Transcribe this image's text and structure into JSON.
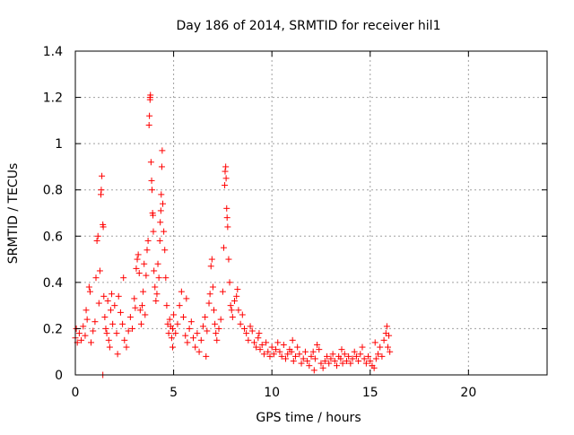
{
  "chart_data": {
    "type": "scatter",
    "title": "Day 186 of 2014, SRMTID for receiver hil1",
    "xlabel": "GPS time / hours",
    "ylabel": "SRMTID / TECUs",
    "xlim": [
      0,
      24
    ],
    "ylim": [
      0,
      1.4
    ],
    "xticks": [
      0,
      5,
      10,
      15,
      20
    ],
    "xtick_labels": [
      "0",
      "5",
      "10",
      "15",
      "20"
    ],
    "yticks": [
      0,
      0.2,
      0.4,
      0.6,
      0.8,
      1.0,
      1.2,
      1.4
    ],
    "ytick_labels": [
      "0",
      "0.2",
      "0.4",
      "0.6",
      "0.8",
      "1",
      "1.2",
      "1.4"
    ],
    "grid": true,
    "marker": "+",
    "marker_color": "#ff0000",
    "series": [
      {
        "name": "SRMTID",
        "points": [
          [
            0.0,
            0.16
          ],
          [
            0.1,
            0.14
          ],
          [
            0.2,
            0.18
          ],
          [
            0.3,
            0.15
          ],
          [
            0.4,
            0.21
          ],
          [
            0.5,
            0.17
          ],
          [
            0.6,
            0.24
          ],
          [
            0.7,
            0.38
          ],
          [
            0.75,
            0.36
          ],
          [
            0.8,
            0.14
          ],
          [
            0.9,
            0.19
          ],
          [
            1.0,
            0.23
          ],
          [
            1.05,
            0.42
          ],
          [
            1.1,
            0.58
          ],
          [
            1.15,
            0.6
          ],
          [
            1.2,
            0.31
          ],
          [
            1.25,
            0.45
          ],
          [
            1.3,
            0.78
          ],
          [
            1.32,
            0.8
          ],
          [
            1.35,
            0.86
          ],
          [
            1.4,
            0.65
          ],
          [
            1.42,
            0.64
          ],
          [
            1.45,
            0.34
          ],
          [
            1.5,
            0.25
          ],
          [
            1.55,
            0.2
          ],
          [
            1.6,
            0.18
          ],
          [
            1.65,
            0.32
          ],
          [
            1.7,
            0.15
          ],
          [
            1.75,
            0.12
          ],
          [
            1.8,
            0.28
          ],
          [
            1.85,
            0.35
          ],
          [
            1.9,
            0.22
          ],
          [
            2.0,
            0.3
          ],
          [
            2.1,
            0.18
          ],
          [
            2.2,
            0.34
          ],
          [
            2.3,
            0.27
          ],
          [
            2.4,
            0.22
          ],
          [
            2.5,
            0.15
          ],
          [
            2.6,
            0.12
          ],
          [
            2.7,
            0.19
          ],
          [
            2.8,
            0.25
          ],
          [
            2.9,
            0.2
          ],
          [
            3.0,
            0.33
          ],
          [
            3.05,
            0.29
          ],
          [
            3.1,
            0.46
          ],
          [
            3.15,
            0.5
          ],
          [
            3.2,
            0.52
          ],
          [
            3.25,
            0.44
          ],
          [
            3.3,
            0.28
          ],
          [
            3.35,
            0.22
          ],
          [
            3.4,
            0.3
          ],
          [
            3.45,
            0.36
          ],
          [
            3.5,
            0.48
          ],
          [
            3.55,
            0.26
          ],
          [
            3.6,
            0.43
          ],
          [
            3.65,
            0.54
          ],
          [
            3.7,
            0.58
          ],
          [
            3.75,
            1.08
          ],
          [
            3.77,
            1.12
          ],
          [
            3.8,
            1.19
          ],
          [
            3.82,
            1.21
          ],
          [
            3.85,
            0.92
          ],
          [
            3.88,
            0.84
          ],
          [
            3.9,
            0.8
          ],
          [
            3.93,
            0.7
          ],
          [
            3.95,
            0.69
          ],
          [
            3.97,
            0.62
          ],
          [
            4.0,
            0.45
          ],
          [
            4.05,
            0.38
          ],
          [
            4.1,
            0.32
          ],
          [
            4.15,
            0.35
          ],
          [
            4.2,
            0.48
          ],
          [
            4.25,
            0.42
          ],
          [
            4.3,
            0.58
          ],
          [
            4.32,
            0.66
          ],
          [
            4.35,
            0.71
          ],
          [
            4.37,
            0.78
          ],
          [
            4.4,
            0.9
          ],
          [
            4.42,
            0.97
          ],
          [
            4.45,
            0.74
          ],
          [
            4.5,
            0.62
          ],
          [
            4.55,
            0.54
          ],
          [
            4.6,
            0.42
          ],
          [
            4.65,
            0.3
          ],
          [
            4.7,
            0.22
          ],
          [
            4.75,
            0.18
          ],
          [
            4.8,
            0.24
          ],
          [
            4.85,
            0.21
          ],
          [
            4.9,
            0.16
          ],
          [
            4.95,
            0.2
          ],
          [
            5.0,
            0.26
          ],
          [
            5.1,
            0.18
          ],
          [
            5.2,
            0.22
          ],
          [
            5.3,
            0.3
          ],
          [
            5.4,
            0.36
          ],
          [
            5.5,
            0.25
          ],
          [
            5.6,
            0.17
          ],
          [
            5.7,
            0.14
          ],
          [
            5.8,
            0.2
          ],
          [
            5.9,
            0.23
          ],
          [
            6.0,
            0.16
          ],
          [
            6.1,
            0.12
          ],
          [
            6.2,
            0.18
          ],
          [
            6.3,
            0.1
          ],
          [
            6.4,
            0.15
          ],
          [
            6.5,
            0.21
          ],
          [
            6.6,
            0.25
          ],
          [
            6.7,
            0.19
          ],
          [
            6.8,
            0.31
          ],
          [
            6.85,
            0.35
          ],
          [
            6.9,
            0.47
          ],
          [
            6.95,
            0.5
          ],
          [
            7.0,
            0.38
          ],
          [
            7.05,
            0.28
          ],
          [
            7.1,
            0.22
          ],
          [
            7.15,
            0.18
          ],
          [
            7.2,
            0.15
          ],
          [
            7.3,
            0.2
          ],
          [
            7.4,
            0.24
          ],
          [
            7.5,
            0.36
          ],
          [
            7.55,
            0.55
          ],
          [
            7.6,
            0.82
          ],
          [
            7.62,
            0.88
          ],
          [
            7.65,
            0.9
          ],
          [
            7.67,
            0.85
          ],
          [
            7.7,
            0.72
          ],
          [
            7.72,
            0.68
          ],
          [
            7.75,
            0.64
          ],
          [
            7.8,
            0.5
          ],
          [
            7.85,
            0.4
          ],
          [
            7.9,
            0.3
          ],
          [
            7.95,
            0.28
          ],
          [
            8.0,
            0.25
          ],
          [
            8.1,
            0.32
          ],
          [
            8.2,
            0.34
          ],
          [
            8.3,
            0.28
          ],
          [
            8.4,
            0.22
          ],
          [
            8.5,
            0.26
          ],
          [
            8.6,
            0.2
          ],
          [
            8.7,
            0.18
          ],
          [
            8.8,
            0.15
          ],
          [
            8.9,
            0.21
          ],
          [
            9.0,
            0.19
          ],
          [
            9.1,
            0.14
          ],
          [
            9.2,
            0.12
          ],
          [
            9.3,
            0.16
          ],
          [
            9.4,
            0.11
          ],
          [
            9.5,
            0.13
          ],
          [
            9.6,
            0.09
          ],
          [
            9.7,
            0.14
          ],
          [
            9.8,
            0.1
          ],
          [
            9.9,
            0.08
          ],
          [
            10.0,
            0.12
          ],
          [
            10.1,
            0.09
          ],
          [
            10.2,
            0.11
          ],
          [
            10.3,
            0.14
          ],
          [
            10.4,
            0.1
          ],
          [
            10.5,
            0.08
          ],
          [
            10.6,
            0.13
          ],
          [
            10.7,
            0.07
          ],
          [
            10.8,
            0.09
          ],
          [
            10.9,
            0.11
          ],
          [
            11.0,
            0.1
          ],
          [
            11.1,
            0.06
          ],
          [
            11.2,
            0.08
          ],
          [
            11.3,
            0.12
          ],
          [
            11.4,
            0.09
          ],
          [
            11.5,
            0.05
          ],
          [
            11.6,
            0.07
          ],
          [
            11.7,
            0.1
          ],
          [
            11.8,
            0.06
          ],
          [
            11.9,
            0.04
          ],
          [
            12.0,
            0.08
          ],
          [
            12.1,
            0.1
          ],
          [
            12.2,
            0.07
          ],
          [
            12.3,
            0.13
          ],
          [
            12.4,
            0.11
          ],
          [
            12.5,
            0.05
          ],
          [
            12.6,
            0.03
          ],
          [
            12.7,
            0.06
          ],
          [
            12.8,
            0.08
          ],
          [
            12.9,
            0.05
          ],
          [
            13.0,
            0.07
          ],
          [
            13.1,
            0.09
          ],
          [
            13.2,
            0.06
          ],
          [
            13.3,
            0.04
          ],
          [
            13.4,
            0.08
          ],
          [
            13.5,
            0.07
          ],
          [
            13.6,
            0.05
          ],
          [
            13.7,
            0.09
          ],
          [
            13.8,
            0.06
          ],
          [
            13.9,
            0.08
          ],
          [
            14.0,
            0.05
          ],
          [
            14.1,
            0.07
          ],
          [
            14.2,
            0.1
          ],
          [
            14.3,
            0.08
          ],
          [
            14.4,
            0.06
          ],
          [
            14.5,
            0.09
          ],
          [
            14.6,
            0.12
          ],
          [
            14.7,
            0.07
          ],
          [
            14.8,
            0.05
          ],
          [
            14.9,
            0.08
          ],
          [
            15.0,
            0.06
          ],
          [
            15.1,
            0.04
          ],
          [
            15.2,
            0.03
          ],
          [
            15.3,
            0.07
          ],
          [
            15.4,
            0.09
          ],
          [
            15.5,
            0.12
          ],
          [
            15.6,
            0.08
          ],
          [
            15.7,
            0.15
          ],
          [
            15.8,
            0.18
          ],
          [
            15.85,
            0.21
          ],
          [
            15.9,
            0.12
          ],
          [
            15.95,
            0.17
          ],
          [
            16.0,
            0.1
          ],
          [
            1.4,
            0.0
          ],
          [
            3.8,
            1.2
          ],
          [
            0.05,
            0.2
          ],
          [
            2.45,
            0.42
          ],
          [
            5.65,
            0.33
          ],
          [
            8.25,
            0.37
          ],
          [
            0.55,
            0.28
          ],
          [
            2.15,
            0.09
          ],
          [
            4.95,
            0.12
          ],
          [
            6.65,
            0.08
          ],
          [
            9.35,
            0.18
          ],
          [
            12.15,
            0.02
          ],
          [
            13.55,
            0.11
          ],
          [
            15.25,
            0.14
          ],
          [
            11.05,
            0.15
          ]
        ]
      }
    ]
  }
}
